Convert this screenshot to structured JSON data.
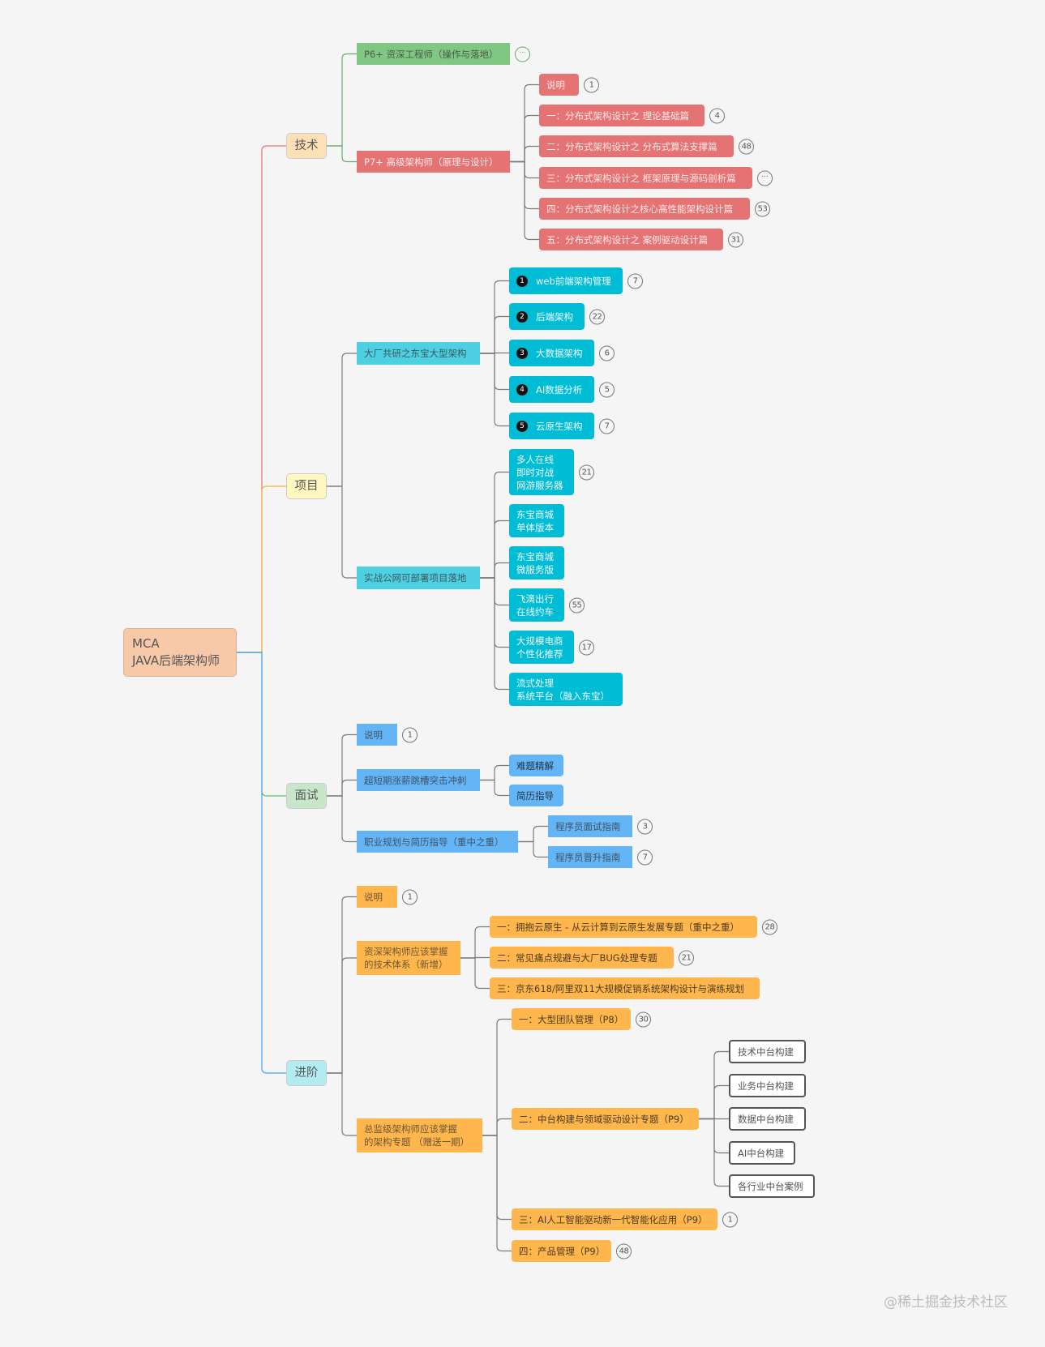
{
  "root": {
    "label": "MCA\nJAVA后端架构师"
  },
  "tech": {
    "label": "技术",
    "p6": {
      "label": "P6+ 资深工程师（操作与落地）",
      "badge": "···"
    },
    "p7": {
      "label": "P7+ 高级架构师（原理与设计）",
      "items": [
        {
          "label": "说明",
          "count": "1"
        },
        {
          "label": "一：分布式架构设计之 理论基础篇",
          "count": "4"
        },
        {
          "label": "二：分布式架构设计之 分布式算法支撑篇",
          "count": "48"
        },
        {
          "label": "三：分布式架构设计之 框架原理与源码剖析篇",
          "count": "···"
        },
        {
          "label": "四：分布式架构设计之核心高性能架构设计篇",
          "count": "53"
        },
        {
          "label": "五：分布式架构设计之 案例驱动设计篇",
          "count": "31"
        }
      ]
    }
  },
  "project": {
    "label": "项目",
    "dachang": {
      "label": "大厂共研之东宝大型架构",
      "items": [
        {
          "n": "1",
          "label": "web前端架构管理",
          "count": "7"
        },
        {
          "n": "2",
          "label": "后端架构",
          "count": "22"
        },
        {
          "n": "3",
          "label": "大数据架构",
          "count": "6"
        },
        {
          "n": "4",
          "label": "AI数据分析",
          "count": "5"
        },
        {
          "n": "5",
          "label": "云原生架构",
          "count": "7"
        }
      ]
    },
    "shizhan": {
      "label": "实战公网可部署项目落地",
      "items": [
        {
          "label": "多人在线\n即时对战\n网游服务器",
          "count": "21"
        },
        {
          "label": "东宝商城\n单体版本"
        },
        {
          "label": "东宝商城\n微服务版"
        },
        {
          "label": "飞滴出行\n在线约车",
          "count": "55"
        },
        {
          "label": "大规模电商\n个性化推荐",
          "count": "17"
        },
        {
          "label": "流式处理\n系统平台（融入东宝）"
        }
      ]
    }
  },
  "interview": {
    "label": "面试",
    "intro": {
      "label": "说明",
      "count": "1"
    },
    "sprint": {
      "label": "超短期涨薪跳槽突击冲刺",
      "items": [
        {
          "label": "难题精解"
        },
        {
          "label": "简历指导"
        }
      ]
    },
    "career": {
      "label": "职业规划与简历指导（重中之重）",
      "items": [
        {
          "label": "程序员面试指南",
          "count": "3"
        },
        {
          "label": "程序员晋升指南",
          "count": "7"
        }
      ]
    }
  },
  "advanced": {
    "label": "进阶",
    "intro": {
      "label": "说明",
      "count": "1"
    },
    "senior": {
      "label": "资深架构师应该掌握\n的技术体系（新增）",
      "items": [
        {
          "label": "一：拥抱云原生 - 从云计算到云原生发展专题（重中之重）",
          "count": "28"
        },
        {
          "label": "二：常见痛点规避与大厂BUG处理专题",
          "count": "21"
        },
        {
          "label": "三：京东618/阿里双11大规模促销系统架构设计与演练规划"
        }
      ]
    },
    "director": {
      "label": "总监级架构师应该掌握\n的架构专题 （赠送一期）",
      "items": [
        {
          "label": "一：大型团队管理（P8）",
          "count": "30"
        },
        {
          "label": "二：中台构建与领域驱动设计专题（P9）",
          "children": [
            "技术中台构建",
            "业务中台构建",
            "数据中台构建",
            "AI中台构建",
            "各行业中台案例"
          ]
        },
        {
          "label": "三：AI人工智能驱动新一代智能化应用（P9）",
          "count": "1"
        },
        {
          "label": "四：产品管理（P9）",
          "count": "48"
        }
      ]
    }
  },
  "watermark": "@稀土掘金技术社区",
  "colors": {
    "tech": "#e57373",
    "project": "#f5b335",
    "interview": "#66bb6a",
    "advanced": "#42a5f5",
    "p6": "#81c784",
    "cyan": "#00bcd4",
    "blue": "#64b5f6",
    "orange": "#ffb74d"
  }
}
